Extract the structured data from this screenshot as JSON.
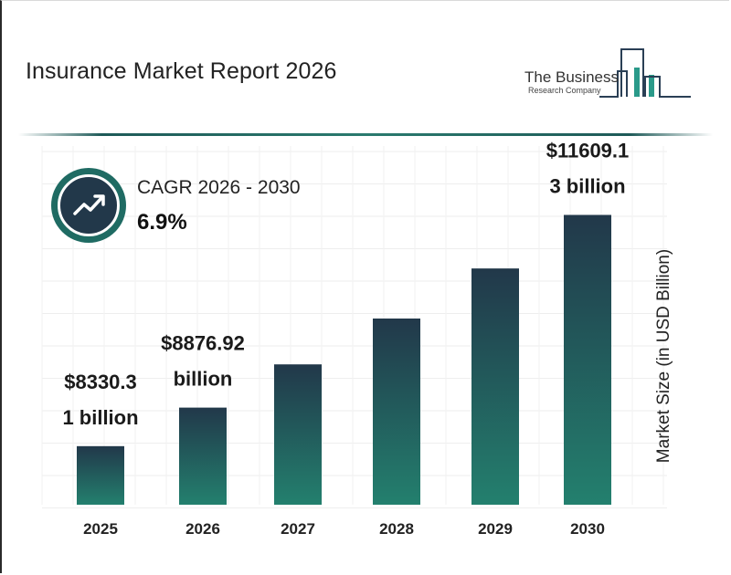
{
  "header": {
    "title": "Insurance Market Report 2026"
  },
  "logo": {
    "line1": "The Business",
    "line2": "Research Company"
  },
  "cagr": {
    "label": "CAGR 2026 - 2030",
    "value": "6.9%",
    "icon": "trend-up-icon"
  },
  "colors": {
    "bar_top": "#22384a",
    "bar_bottom": "#23806e",
    "accent": "#1f6b63"
  },
  "chart_data": {
    "type": "bar",
    "title": "Insurance Market Report 2026",
    "xlabel": "",
    "ylabel": "Market Size (in USD Billion)",
    "categories": [
      "2025",
      "2026",
      "2027",
      "2028",
      "2029",
      "2030"
    ],
    "values": [
      8330.31,
      8876.92,
      9490,
      10140,
      10850,
      11609.13
    ],
    "data_labels": [
      [
        "$8330.3",
        "1 billion"
      ],
      [
        "$8876.92",
        "billion"
      ],
      null,
      null,
      null,
      [
        "$11609.1",
        "3 billion"
      ]
    ],
    "grid": true
  }
}
